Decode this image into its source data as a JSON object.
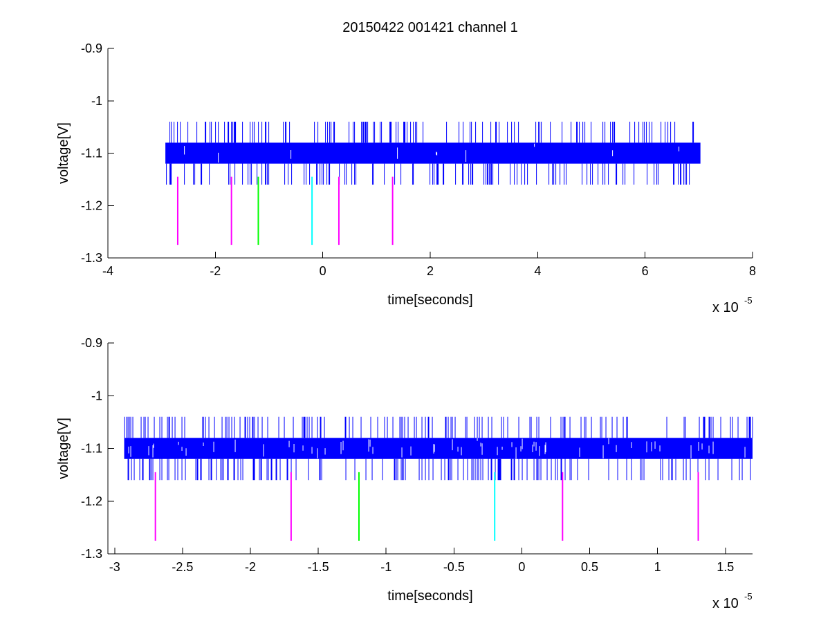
{
  "figure_title": "20150422 001421 channel 1",
  "colors": {
    "signal": "#0000ff",
    "magenta": "#ff00ff",
    "green": "#00ff00",
    "cyan": "#00ffff"
  },
  "chart_data": [
    {
      "type": "line",
      "title": "20150422 001421 channel 1",
      "xlabel": "time[seconds]",
      "ylabel": "voltage[V]",
      "x_multiplier_label": "x 10",
      "x_multiplier_exponent": "-5",
      "xlim": [
        -4,
        8
      ],
      "ylim": [
        -1.3,
        -0.9
      ],
      "x_ticks": [
        -4,
        -2,
        0,
        2,
        4,
        6,
        8
      ],
      "x_tick_labels": [
        "-4",
        "-2",
        "0",
        "2",
        "4",
        "6",
        "8"
      ],
      "y_ticks": [
        -1.3,
        -1.2,
        -1.1,
        -1.0,
        -0.9
      ],
      "y_tick_labels": [
        "-1.3",
        "-1.2",
        "-1.1",
        "-1",
        "-0.9"
      ],
      "grid": false,
      "series": [
        {
          "kind": "noise-band",
          "color": "#0000ff",
          "x_range": [
            -2.93,
            7.03
          ],
          "band": [
            -1.12,
            -1.08
          ],
          "spike_range": [
            -1.16,
            -1.04
          ]
        }
      ],
      "markers": [
        {
          "x": -2.7,
          "y_range": [
            -1.275,
            -1.145
          ],
          "color": "#ff00ff"
        },
        {
          "x": -1.7,
          "y_range": [
            -1.275,
            -1.145
          ],
          "color": "#ff00ff"
        },
        {
          "x": -1.2,
          "y_range": [
            -1.275,
            -1.145
          ],
          "color": "#00ff00"
        },
        {
          "x": -0.2,
          "y_range": [
            -1.275,
            -1.145
          ],
          "color": "#00ffff"
        },
        {
          "x": 0.3,
          "y_range": [
            -1.275,
            -1.145
          ],
          "color": "#ff00ff"
        },
        {
          "x": 1.3,
          "y_range": [
            -1.275,
            -1.145
          ],
          "color": "#ff00ff"
        }
      ]
    },
    {
      "type": "line",
      "title": "",
      "xlabel": "time[seconds]",
      "ylabel": "voltage[V]",
      "x_multiplier_label": "x 10",
      "x_multiplier_exponent": "-5",
      "xlim": [
        -3.05,
        1.7
      ],
      "ylim": [
        -1.3,
        -0.9
      ],
      "x_ticks": [
        -3,
        -2.5,
        -2,
        -1.5,
        -1,
        -0.5,
        0,
        0.5,
        1,
        1.5
      ],
      "x_tick_labels": [
        "-3",
        "-2.5",
        "-2",
        "-1.5",
        "-1",
        "-0.5",
        "0",
        "0.5",
        "1",
        "1.5"
      ],
      "y_ticks": [
        -1.3,
        -1.2,
        -1.1,
        -1.0,
        -0.9
      ],
      "y_tick_labels": [
        "-1.3",
        "-1.2",
        "-1.1",
        "-1",
        "-0.9"
      ],
      "grid": false,
      "series": [
        {
          "kind": "noise-band",
          "color": "#0000ff",
          "x_range": [
            -2.93,
            1.7
          ],
          "band": [
            -1.12,
            -1.08
          ],
          "spike_range": [
            -1.16,
            -1.04
          ]
        }
      ],
      "markers": [
        {
          "x": -2.7,
          "y_range": [
            -1.275,
            -1.145
          ],
          "color": "#ff00ff"
        },
        {
          "x": -1.7,
          "y_range": [
            -1.275,
            -1.145
          ],
          "color": "#ff00ff"
        },
        {
          "x": -1.2,
          "y_range": [
            -1.275,
            -1.145
          ],
          "color": "#00ff00"
        },
        {
          "x": -0.2,
          "y_range": [
            -1.275,
            -1.145
          ],
          "color": "#00ffff"
        },
        {
          "x": 0.3,
          "y_range": [
            -1.275,
            -1.145
          ],
          "color": "#ff00ff"
        },
        {
          "x": 1.3,
          "y_range": [
            -1.275,
            -1.145
          ],
          "color": "#ff00ff"
        }
      ]
    }
  ]
}
